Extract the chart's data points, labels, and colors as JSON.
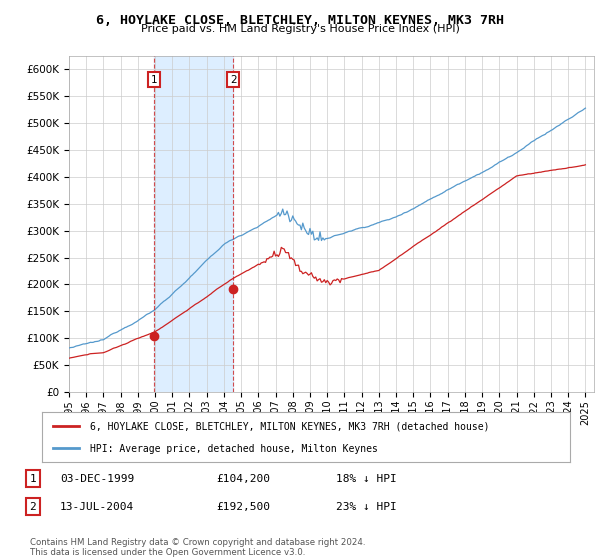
{
  "title": "6, HOYLAKE CLOSE, BLETCHLEY, MILTON KEYNES, MK3 7RH",
  "subtitle": "Price paid vs. HM Land Registry's House Price Index (HPI)",
  "legend_line1": "6, HOYLAKE CLOSE, BLETCHLEY, MILTON KEYNES, MK3 7RH (detached house)",
  "legend_line2": "HPI: Average price, detached house, Milton Keynes",
  "transaction1_label": "1",
  "transaction1_date": "03-DEC-1999",
  "transaction1_price": "£104,200",
  "transaction1_hpi": "18% ↓ HPI",
  "transaction2_label": "2",
  "transaction2_date": "13-JUL-2004",
  "transaction2_price": "£192,500",
  "transaction2_hpi": "23% ↓ HPI",
  "footer": "Contains HM Land Registry data © Crown copyright and database right 2024.\nThis data is licensed under the Open Government Licence v3.0.",
  "hpi_color": "#5599cc",
  "price_color": "#cc2222",
  "shade_color": "#ddeeff",
  "ylim": [
    0,
    625000
  ],
  "yticks": [
    0,
    50000,
    100000,
    150000,
    200000,
    250000,
    300000,
    350000,
    400000,
    450000,
    500000,
    550000,
    600000
  ],
  "background_color": "#ffffff",
  "grid_color": "#cccccc",
  "t1_year": 1999.917,
  "t2_year": 2004.542,
  "t1_price": 104200,
  "t2_price": 192500
}
